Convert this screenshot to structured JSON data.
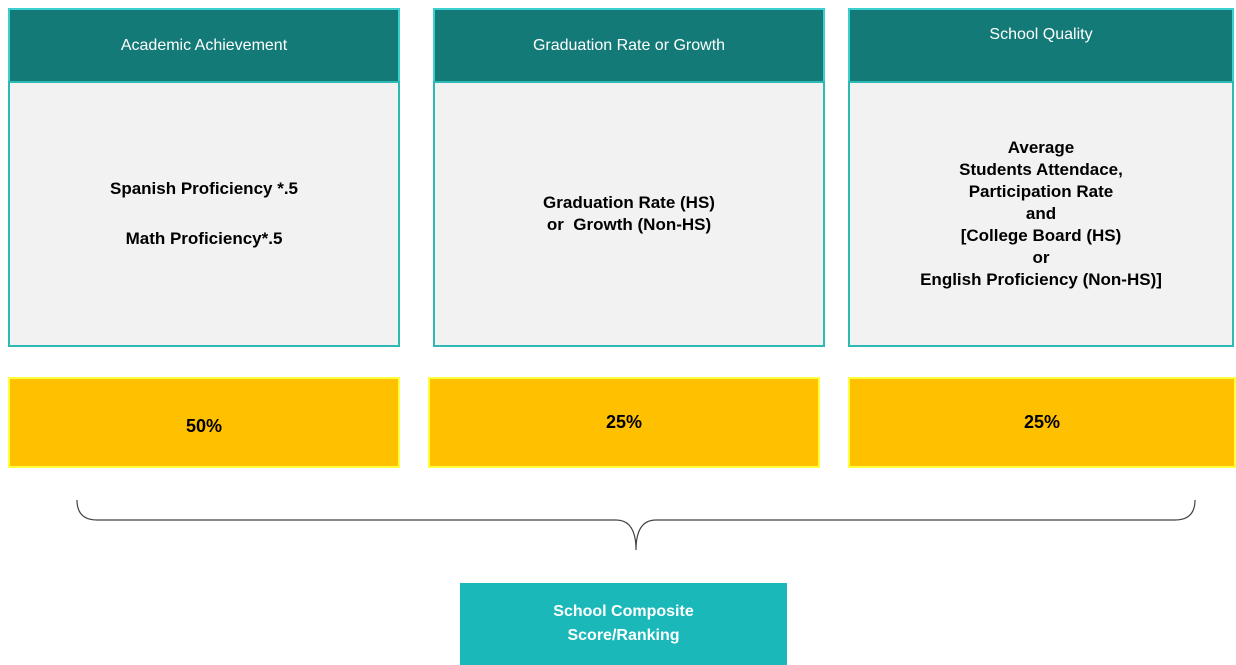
{
  "columns": [
    {
      "header": "Academic Achievement",
      "paragraphs": [
        [
          "Spanish Proficiency *.5"
        ],
        [
          "Math Proficiency*.5"
        ]
      ],
      "weight": "50%"
    },
    {
      "header": "Graduation Rate or Growth",
      "paragraphs": [
        [
          "Graduation Rate (HS)",
          "or  Growth (Non-HS)"
        ]
      ],
      "weight": "25%"
    },
    {
      "header": "School Quality",
      "paragraphs": [
        [
          "Average",
          "Students Attendace,",
          "Participation Rate",
          "and",
          "[College Board (HS)",
          "or",
          "English Proficiency (Non-HS)]"
        ]
      ],
      "weight": "25%"
    }
  ],
  "result": {
    "lines": [
      "School Composite",
      "Score/Ranking"
    ]
  }
}
